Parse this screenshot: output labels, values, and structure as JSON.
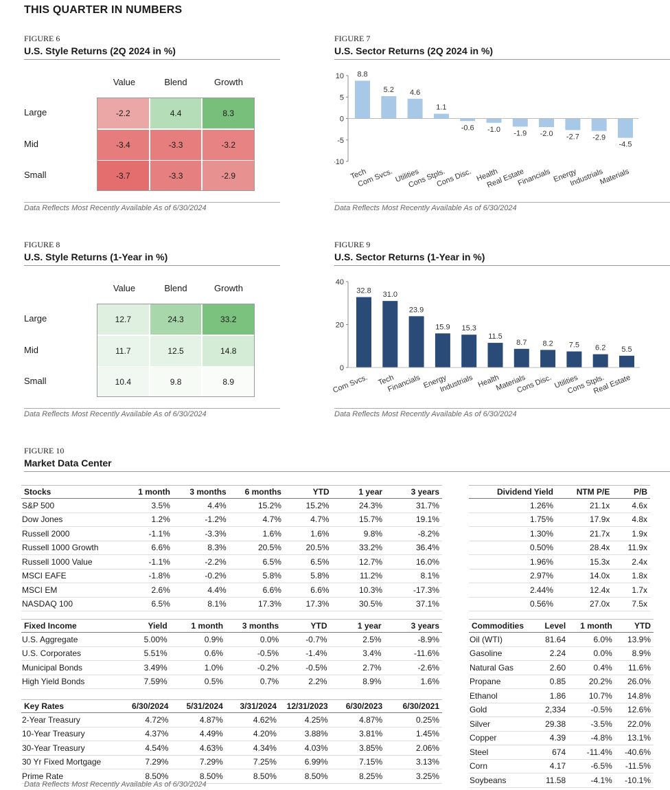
{
  "page_title": "THIS QUARTER IN NUMBERS",
  "source_note": "Data Reflects Most Recently Available As of 6/30/2024",
  "style_cols": [
    "Value",
    "Blend",
    "Growth"
  ],
  "style_rows": [
    "Large",
    "Mid",
    "Small"
  ],
  "fig6": {
    "label": "FIGURE 6",
    "title": "U.S. Style Returns (2Q 2024 in %)",
    "cells": [
      [
        "-2.2",
        "4.4",
        "8.3"
      ],
      [
        "-3.4",
        "-3.3",
        "-3.2"
      ],
      [
        "-3.7",
        "-3.3",
        "-2.9"
      ]
    ],
    "colors": [
      [
        "#eba6a6",
        "#b5ddb8",
        "#79bf7c"
      ],
      [
        "#e67c7c",
        "#e67e7e",
        "#e78383"
      ],
      [
        "#e46d6d",
        "#e67f7f",
        "#e89191"
      ]
    ]
  },
  "fig8": {
    "label": "FIGURE 8",
    "title": "U.S. Style Returns (1-Year in %)",
    "cells": [
      [
        "12.7",
        "24.3",
        "33.2"
      ],
      [
        "11.7",
        "12.5",
        "14.8"
      ],
      [
        "10.4",
        "9.8",
        "8.9"
      ]
    ],
    "colors": [
      [
        "#dff0e0",
        "#a9d7ac",
        "#7cc27f"
      ],
      [
        "#e9f4ea",
        "#e5f2e6",
        "#d4ebd5"
      ],
      [
        "#f1f8f2",
        "#f6fbf6",
        "#fafcfa"
      ]
    ]
  },
  "fig7": {
    "label": "FIGURE 7",
    "title": "U.S. Sector Returns (2Q 2024 in %)",
    "bar_color": "#a8c8e8"
  },
  "fig9": {
    "label": "FIGURE 9",
    "title": "U.S. Sector Returns (1-Year in %)",
    "bar_color": "#2a4a78"
  },
  "chart_data": [
    {
      "type": "bar",
      "title": "U.S. Sector Returns (2Q 2024 in %)",
      "categories": [
        "Tech",
        "Com Svcs.",
        "Utilities",
        "Cons Stpls.",
        "Cons Disc.",
        "Health",
        "Real Estate",
        "Financials",
        "Energy",
        "Industrials",
        "Materials"
      ],
      "values": [
        8.8,
        5.2,
        4.6,
        1.1,
        -0.6,
        -1.0,
        -1.9,
        -2.0,
        -2.7,
        -2.9,
        -4.5
      ],
      "labels": [
        "8.8",
        "5.2",
        "4.6",
        "1.1",
        "-0.6",
        "-1.0",
        "-1.9",
        "-2.0",
        "-2.7",
        "-2.9",
        "-4.5"
      ],
      "ylim": [
        -10,
        10
      ],
      "yticks": [
        10,
        5,
        0,
        -5,
        -10
      ],
      "ytick_labels": [
        "10",
        "5",
        "0",
        "-5",
        "-10"
      ]
    },
    {
      "type": "bar",
      "title": "U.S. Sector Returns (1-Year in %)",
      "categories": [
        "Com Svcs.",
        "Tech",
        "Financials",
        "Energy",
        "Industrials",
        "Health",
        "Materials",
        "Cons Disc.",
        "Utilities",
        "Cons Stpls.",
        "Real Estate"
      ],
      "values": [
        32.8,
        31.0,
        23.9,
        15.9,
        15.3,
        11.5,
        8.7,
        8.2,
        7.5,
        6.2,
        5.5
      ],
      "labels": [
        "32.8",
        "31.0",
        "23.9",
        "15.9",
        "15.3",
        "11.5",
        "8.7",
        "8.2",
        "7.5",
        "6.2",
        "5.5"
      ],
      "ylim": [
        0,
        40
      ],
      "yticks": [
        40,
        20,
        0
      ],
      "ytick_labels": [
        "40",
        "20",
        "0"
      ]
    }
  ],
  "fig10": {
    "label": "FIGURE 10",
    "title": "Market Data Center",
    "stocks": {
      "headers": [
        "Stocks",
        "1 month",
        "3 months",
        "6 months",
        "YTD",
        "1 year",
        "3 years"
      ],
      "rows": [
        [
          "S&P 500",
          "3.5%",
          "4.4%",
          "15.2%",
          "15.2%",
          "24.3%",
          "31.7%"
        ],
        [
          "Dow Jones",
          "1.2%",
          "-1.2%",
          "4.7%",
          "4.7%",
          "15.7%",
          "19.1%"
        ],
        [
          "Russell 2000",
          "-1.1%",
          "-3.3%",
          "1.6%",
          "1.6%",
          "9.8%",
          "-8.2%"
        ],
        [
          "Russell 1000 Growth",
          "6.6%",
          "8.3%",
          "20.5%",
          "20.5%",
          "33.2%",
          "36.4%"
        ],
        [
          "Russell 1000 Value",
          "-1.1%",
          "-2.2%",
          "6.5%",
          "6.5%",
          "12.7%",
          "16.0%"
        ],
        [
          "MSCI EAFE",
          "-1.8%",
          "-0.2%",
          "5.8%",
          "5.8%",
          "11.2%",
          "8.1%"
        ],
        [
          "MSCI EM",
          "2.6%",
          "4.4%",
          "6.6%",
          "6.6%",
          "10.3%",
          "-17.3%"
        ],
        [
          "NASDAQ 100",
          "6.5%",
          "8.1%",
          "17.3%",
          "17.3%",
          "30.5%",
          "37.1%"
        ]
      ]
    },
    "dividend": {
      "headers": [
        "Dividend Yield",
        "NTM P/E",
        "P/B"
      ],
      "rows": [
        [
          "1.26%",
          "21.1x",
          "4.6x"
        ],
        [
          "1.75%",
          "17.9x",
          "4.8x"
        ],
        [
          "1.30%",
          "21.7x",
          "1.9x"
        ],
        [
          "0.50%",
          "28.4x",
          "11.9x"
        ],
        [
          "1.96%",
          "15.3x",
          "2.4x"
        ],
        [
          "2.97%",
          "14.0x",
          "1.8x"
        ],
        [
          "2.44%",
          "12.4x",
          "1.7x"
        ],
        [
          "0.56%",
          "27.0x",
          "7.5x"
        ]
      ]
    },
    "fixed_income": {
      "headers": [
        "Fixed Income",
        "Yield",
        "1 month",
        "3 months",
        "YTD",
        "1 year",
        "3 years"
      ],
      "rows": [
        [
          "U.S. Aggregate",
          "5.00%",
          "0.9%",
          "0.0%",
          "-0.7%",
          "2.5%",
          "-8.9%"
        ],
        [
          "U.S. Corporates",
          "5.51%",
          "0.6%",
          "-0.5%",
          "-1.4%",
          "3.4%",
          "-11.6%"
        ],
        [
          "Municipal Bonds",
          "3.49%",
          "1.0%",
          "-0.2%",
          "-0.5%",
          "2.7%",
          "-2.6%"
        ],
        [
          "High Yield Bonds",
          "7.59%",
          "0.5%",
          "0.7%",
          "2.2%",
          "8.9%",
          "1.6%"
        ]
      ]
    },
    "key_rates": {
      "headers": [
        "Key Rates",
        "6/30/2024",
        "5/31/2024",
        "3/31/2024",
        "12/31/2023",
        "6/30/2023",
        "6/30/2021"
      ],
      "rows": [
        [
          "2-Year Treasury",
          "4.72%",
          "4.87%",
          "4.62%",
          "4.25%",
          "4.87%",
          "0.25%"
        ],
        [
          "10-Year Treasury",
          "4.37%",
          "4.49%",
          "4.20%",
          "3.88%",
          "3.81%",
          "1.45%"
        ],
        [
          "30-Year Treasury",
          "4.54%",
          "4.63%",
          "4.34%",
          "4.03%",
          "3.85%",
          "2.06%"
        ],
        [
          "30 Yr Fixed Mortgage",
          "7.29%",
          "7.29%",
          "7.25%",
          "6.99%",
          "7.15%",
          "3.13%"
        ],
        [
          "Prime Rate",
          "8.50%",
          "8.50%",
          "8.50%",
          "8.50%",
          "8.25%",
          "3.25%"
        ]
      ]
    },
    "commodities": {
      "headers": [
        "Commodities",
        "Level",
        "1 month",
        "YTD"
      ],
      "rows": [
        [
          "Oil (WTI)",
          "81.64",
          "6.0%",
          "13.9%"
        ],
        [
          "Gasoline",
          "2.24",
          "0.0%",
          "8.9%"
        ],
        [
          "Natural Gas",
          "2.60",
          "0.4%",
          "11.6%"
        ],
        [
          "Propane",
          "0.85",
          "20.2%",
          "26.0%"
        ],
        [
          "Ethanol",
          "1.86",
          "10.7%",
          "14.8%"
        ],
        [
          "Gold",
          "2,334",
          "-0.5%",
          "12.6%"
        ],
        [
          "Silver",
          "29.38",
          "-3.5%",
          "22.0%"
        ],
        [
          "Copper",
          "4.39",
          "-4.8%",
          "13.1%"
        ],
        [
          "Steel",
          "674",
          "-11.4%",
          "-40.6%"
        ],
        [
          "Corn",
          "4.17",
          "-6.5%",
          "-11.5%"
        ],
        [
          "Soybeans",
          "11.58",
          "-4.1%",
          "-10.1%"
        ]
      ]
    }
  }
}
